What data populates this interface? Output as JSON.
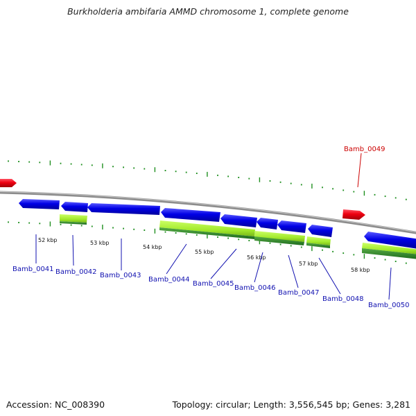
{
  "title": "Burkholderia ambifaria AMMD chromosome 1, complete genome",
  "footer": {
    "accession": "Accession: NC_008390",
    "topology": "Topology: circular; Length: 3,556,545 bp; Genes: 3,281"
  },
  "colors": {
    "forward_gene": "#e8001c",
    "reverse_gene": "#0000e0",
    "feature_light": "#a6ee33",
    "feature_dark": "#2e8b2e",
    "backbone": "#8c8c8c",
    "tick": "#1f8f1f",
    "label_reverse": "#1010b0",
    "label_forward": "#cc0000"
  },
  "kbp_labels": [
    "52 kbp",
    "53 kbp",
    "54 kbp",
    "55 kbp",
    "56 kbp",
    "57 kbp",
    "58 kbp"
  ],
  "genes": [
    {
      "name": "Bamb_0041",
      "strand": "reverse"
    },
    {
      "name": "Bamb_0042",
      "strand": "reverse"
    },
    {
      "name": "Bamb_0043",
      "strand": "reverse"
    },
    {
      "name": "Bamb_0044",
      "strand": "reverse"
    },
    {
      "name": "Bamb_0045",
      "strand": "reverse"
    },
    {
      "name": "Bamb_0046",
      "strand": "reverse"
    },
    {
      "name": "Bamb_0047",
      "strand": "reverse"
    },
    {
      "name": "Bamb_0048",
      "strand": "reverse"
    },
    {
      "name": "Bamb_0049",
      "strand": "forward"
    },
    {
      "name": "Bamb_0050",
      "strand": "reverse"
    }
  ]
}
